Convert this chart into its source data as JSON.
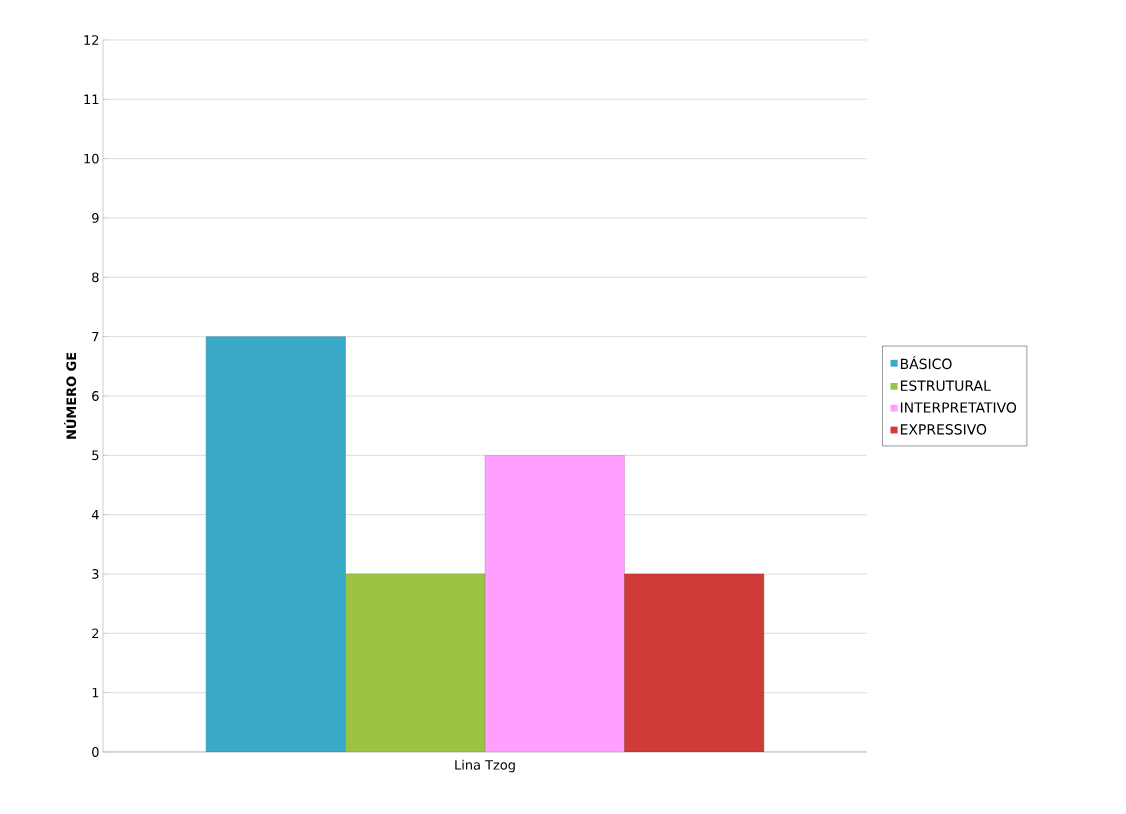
{
  "chart_data": {
    "type": "bar",
    "ylabel": "NÚMERO GE",
    "categories": [
      "Lina Tzog"
    ],
    "series": [
      {
        "name": "BÁSICO",
        "color": "#38aac8",
        "values": [
          7
        ]
      },
      {
        "name": "ESTRUTURAL",
        "color": "#9bc540",
        "values": [
          3
        ]
      },
      {
        "name": "INTERPRETATIVO",
        "color": "#ff9fff",
        "values": [
          5
        ]
      },
      {
        "name": "EXPRESSIVO",
        "color": "#d13b37",
        "values": [
          3
        ]
      }
    ],
    "ylim": [
      0,
      12
    ],
    "yticks": [
      0,
      1,
      2,
      3,
      4,
      5,
      6,
      7,
      8,
      9,
      10,
      11,
      12
    ],
    "grid": "y",
    "legend": "right"
  }
}
